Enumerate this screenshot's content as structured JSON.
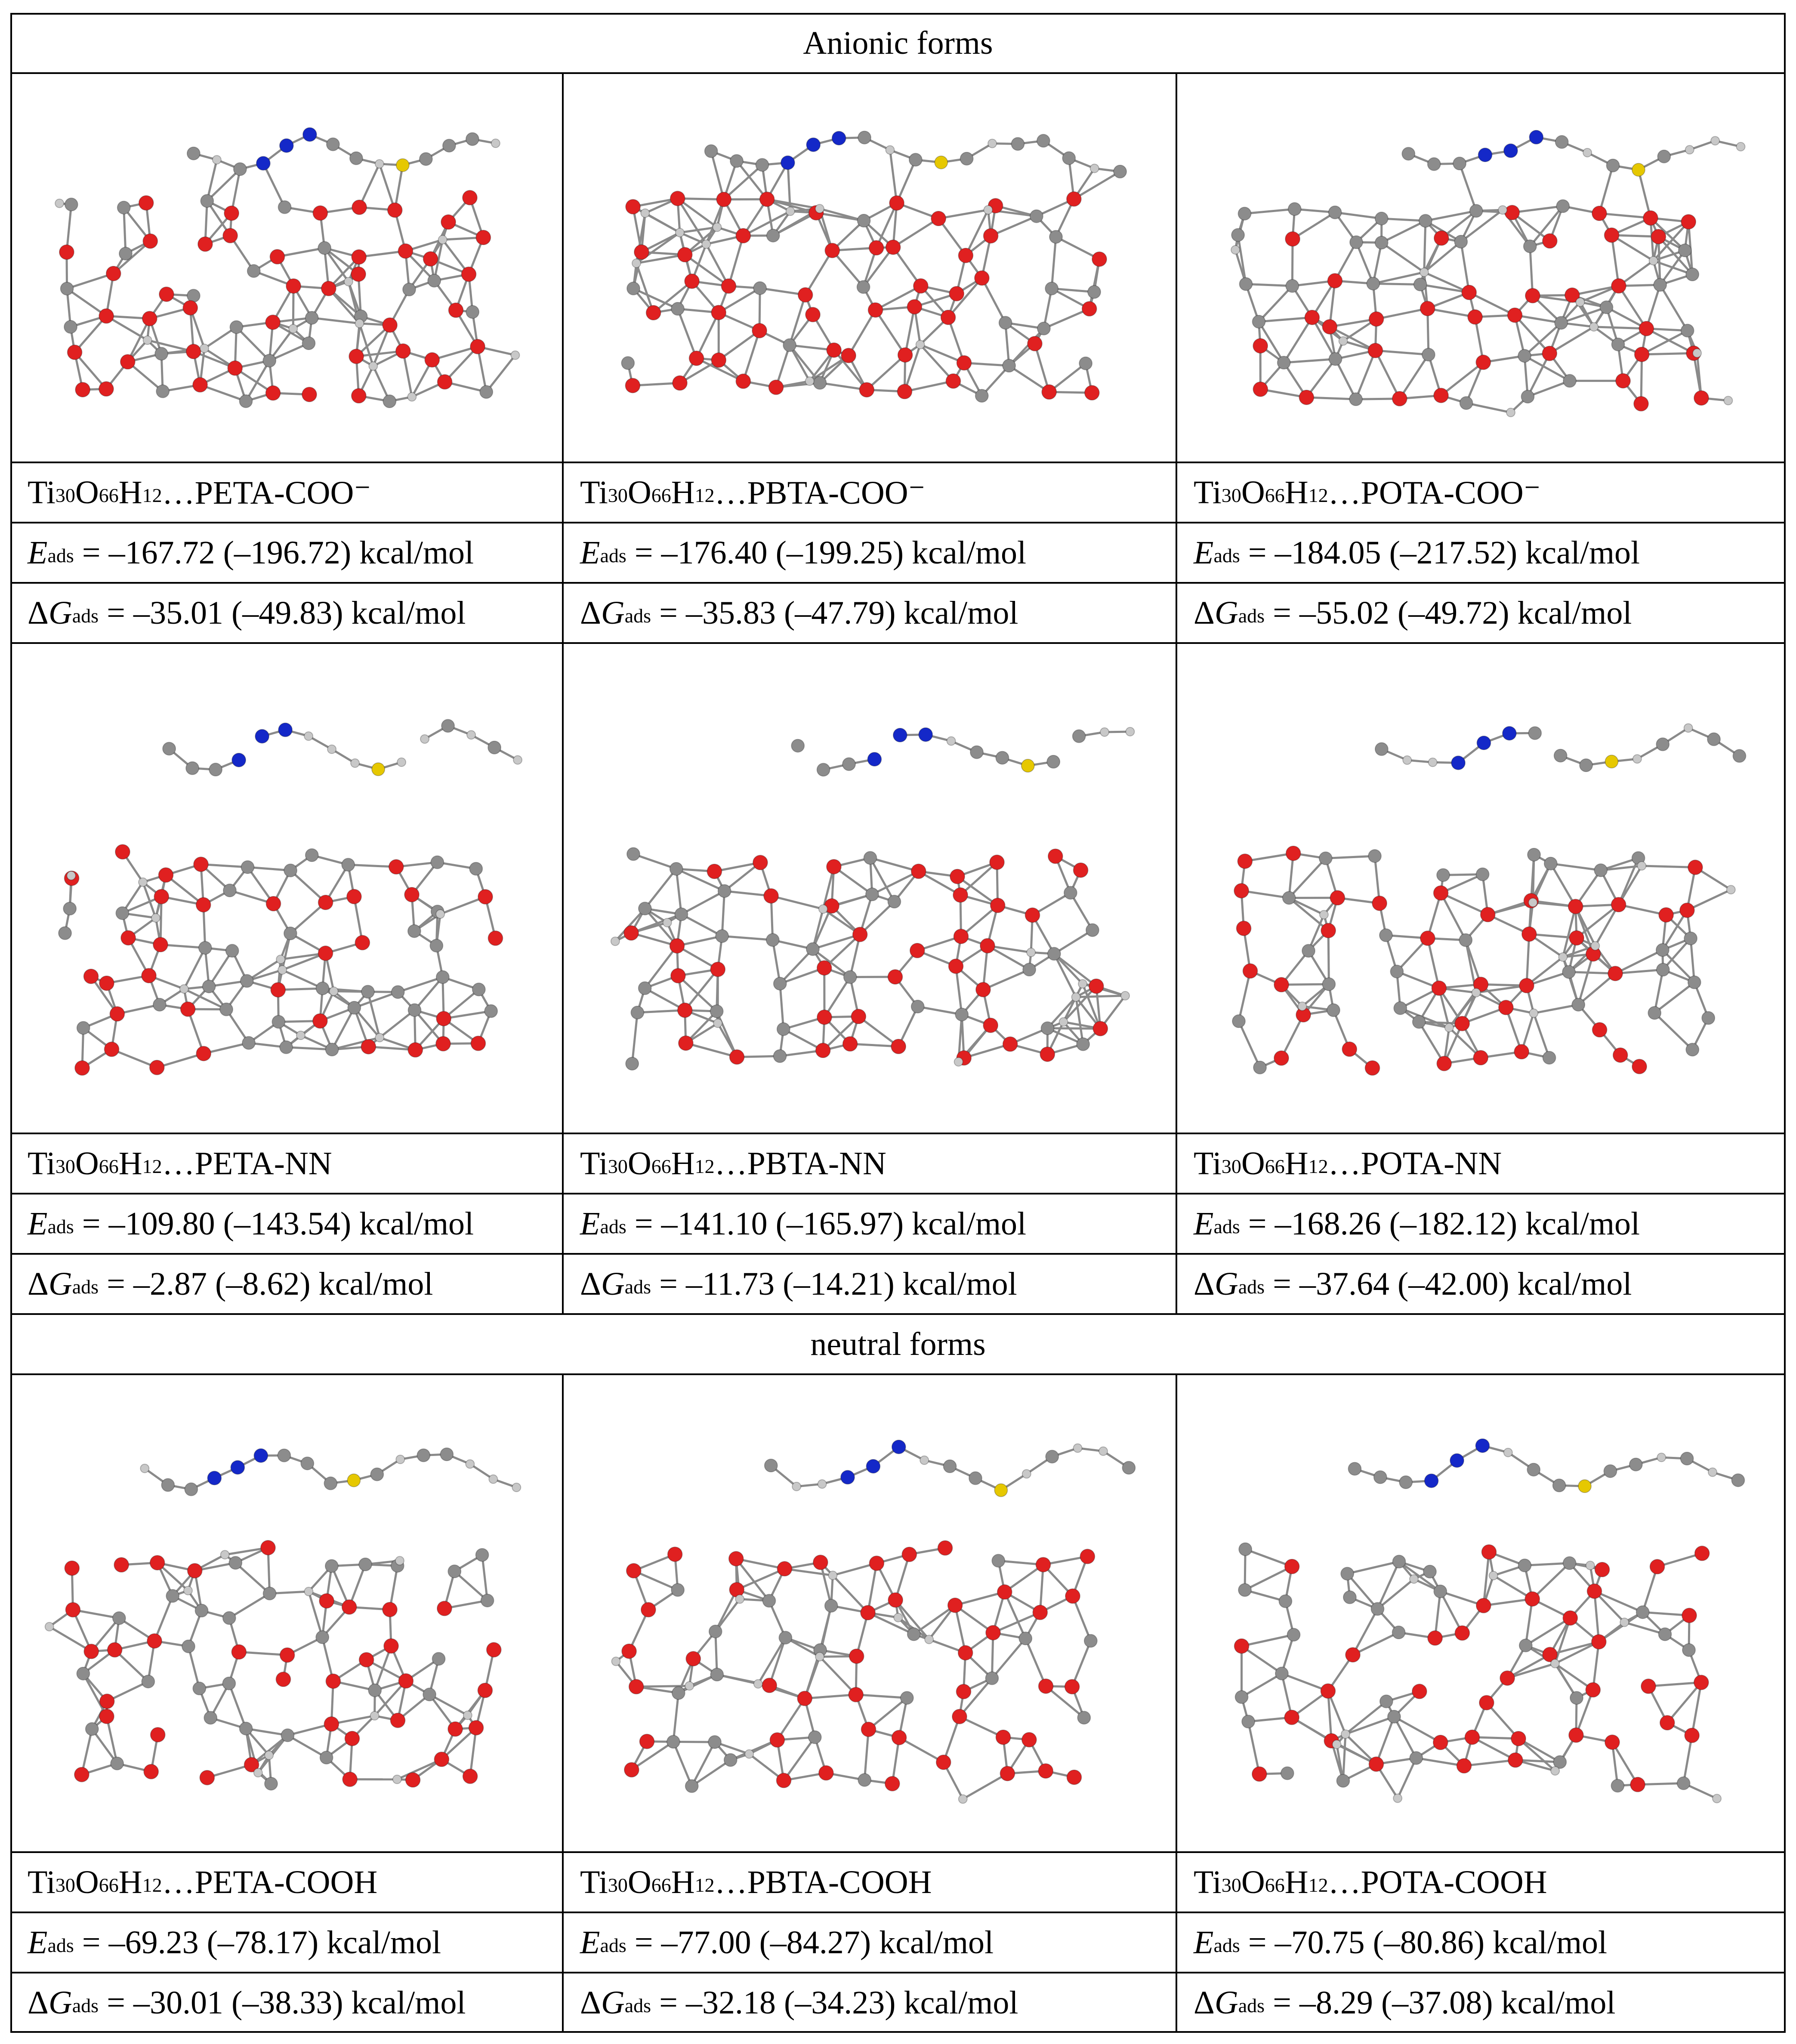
{
  "sections": [
    {
      "title": "Anionic forms",
      "rows": [
        {
          "cells": [
            {
              "picture": "Ti30O66H12 cluster with adsorbed PETA-COO−",
              "label": {
                "pre": "Ti",
                "s1": "30",
                "o": "O",
                "s2": "66",
                "h": "H",
                "s3": "12",
                "rest": "…PETA-COO⁻"
              },
              "e_val": "= –167.72 (–196.72) kcal/mol",
              "g_val": "= –35.01 (–49.83) kcal/mol"
            },
            {
              "picture": "Ti30O66H12 cluster with adsorbed PBTA-COO−",
              "label": {
                "pre": "Ti",
                "s1": "30",
                "o": "O",
                "s2": "66",
                "h": "H",
                "s3": "12",
                "rest": "…PBTA-COO⁻"
              },
              "e_val": "= –176.40 (–199.25) kcal/mol",
              "g_val": "= –35.83 (–47.79) kcal/mol"
            },
            {
              "picture": "Ti30O66H12 cluster with adsorbed POTA-COO−",
              "label": {
                "pre": "Ti",
                "s1": "30",
                "o": "O",
                "s2": "66",
                "h": "H",
                "s3": "12",
                "rest": "…POTA-COO⁻"
              },
              "e_val": "= –184.05 (–217.52) kcal/mol",
              "g_val": "= –55.02 (–49.72) kcal/mol"
            }
          ]
        },
        {
          "cells": [
            {
              "picture": "Ti30O66H12 cluster with adsorbed PETA-NN",
              "label": {
                "pre": "Ti",
                "s1": "30",
                "o": "O",
                "s2": "66",
                "h": "H",
                "s3": "12",
                "rest": "…PETA-NN"
              },
              "e_val": "= –109.80 (–143.54) kcal/mol",
              "g_val": "= –2.87 (–8.62) kcal/mol"
            },
            {
              "picture": "Ti30O66H12 cluster with adsorbed PBTA-NN",
              "label": {
                "pre": "Ti",
                "s1": "30",
                "o": "O",
                "s2": "66",
                "h": "H",
                "s3": "12",
                "rest": "…PBTA-NN"
              },
              "e_val": "= –141.10 (–165.97) kcal/mol",
              "g_val": "= –11.73 (–14.21) kcal/mol"
            },
            {
              "picture": "Ti30O66H12 cluster with adsorbed POTA-NN",
              "label": {
                "pre": "Ti",
                "s1": "30",
                "o": "O",
                "s2": "66",
                "h": "H",
                "s3": "12",
                "rest": "…POTA-NN"
              },
              "e_val": "= –168.26 (–182.12) kcal/mol",
              "g_val": "= –37.64 (–42.00) kcal/mol"
            }
          ]
        }
      ]
    },
    {
      "title": "neutral forms",
      "rows": [
        {
          "cells": [
            {
              "picture": "Ti30O66H12 cluster with adsorbed PETA-COOH",
              "label": {
                "pre": "Ti",
                "s1": "30",
                "o": "O",
                "s2": "66",
                "h": "H",
                "s3": "12",
                "rest": "…PETA-COOH"
              },
              "e_val": "= –69.23 (–78.17) kcal/mol",
              "g_val": "= –30.01 (–38.33) kcal/mol"
            },
            {
              "picture": "Ti30O66H12 cluster with adsorbed PBTA-COOH",
              "label": {
                "pre": "Ti",
                "s1": "30",
                "o": "O",
                "s2": "66",
                "h": "H",
                "s3": "12",
                "rest": "…PBTA-COOH"
              },
              "e_val": "= –77.00 (–84.27) kcal/mol",
              "g_val": "= –32.18 (–34.23) kcal/mol"
            },
            {
              "picture": "Ti30O66H12 cluster with adsorbed POTA-COOH",
              "label": {
                "pre": "Ti",
                "s1": "30",
                "o": "O",
                "s2": "66",
                "h": "H",
                "s3": "12",
                "rest": "…POTA-COOH"
              },
              "e_val": "= –70.75 (–80.86) kcal/mol",
              "g_val": "= –8.29 (–37.08) kcal/mol"
            }
          ]
        }
      ]
    }
  ],
  "symbols": {
    "e_letter": "E",
    "g_delta": "Δ",
    "g_letter": "G",
    "ads_sub": "ads"
  },
  "colors": {
    "oxygen": "#e02020",
    "titanium": "#8c8c8c",
    "hydrogen": "#c8c8c8",
    "nitrogen": "#1428c8",
    "sulfur": "#e6c800"
  }
}
